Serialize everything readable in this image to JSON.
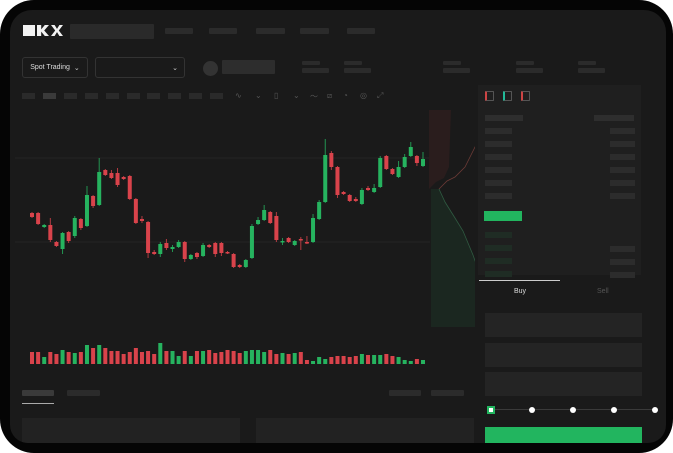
{
  "header": {
    "logo": "OKX"
  },
  "market": {
    "mode_label": "Spot Trading"
  },
  "trade": {
    "buy_label": "Buy",
    "sell_label": "Sell",
    "leverage_steps": 5,
    "selected_step": 0
  },
  "colors": {
    "up": "#26b35f",
    "down": "#d9434b",
    "buy_button": "#22b55f",
    "background": "#1a1a1a"
  },
  "toolbar_icons": [
    "line-chart-icon",
    "indicator-icon",
    "candle-type-icon",
    "wave-icon",
    "pen-icon",
    "camera-icon",
    "settings-icon",
    "fullscreen-icon"
  ],
  "chart_data": {
    "type": "candlestick",
    "ohlc": [
      [
        67,
        63,
        68,
        62
      ],
      [
        67,
        56,
        68,
        55
      ],
      [
        53,
        55,
        56,
        52
      ],
      [
        55,
        40,
        62,
        38
      ],
      [
        38,
        34,
        39,
        33
      ],
      [
        31,
        47,
        48,
        26
      ],
      [
        48,
        39,
        49,
        37
      ],
      [
        44,
        62,
        64,
        42
      ],
      [
        61,
        52,
        62,
        50
      ],
      [
        54,
        85,
        94,
        53
      ],
      [
        84,
        74,
        85,
        72
      ],
      [
        75,
        108,
        122,
        74
      ],
      [
        110,
        105,
        111,
        104
      ],
      [
        107,
        102,
        110,
        101
      ],
      [
        107,
        95,
        112,
        93
      ],
      [
        103,
        101,
        104,
        100
      ],
      [
        104,
        81,
        105,
        80
      ],
      [
        81,
        57,
        82,
        56
      ],
      [
        61,
        59,
        64,
        57
      ],
      [
        58,
        27,
        59,
        22
      ],
      [
        28,
        26,
        30,
        25
      ],
      [
        26,
        36,
        38,
        23
      ],
      [
        37,
        32,
        41,
        30
      ],
      [
        31,
        33,
        35,
        28
      ],
      [
        33,
        38,
        40,
        32
      ],
      [
        38,
        21,
        39,
        18
      ],
      [
        21,
        25,
        26,
        20
      ],
      [
        27,
        23,
        28,
        21
      ],
      [
        24,
        35,
        37,
        23
      ],
      [
        35,
        33,
        36,
        32
      ],
      [
        37,
        26,
        38,
        23
      ],
      [
        37,
        27,
        38,
        24
      ],
      [
        28,
        27,
        29,
        26
      ],
      [
        26,
        13,
        27,
        12
      ],
      [
        15,
        13,
        16,
        12
      ],
      [
        13,
        20,
        21,
        12
      ],
      [
        22,
        54,
        56,
        21
      ],
      [
        56,
        60,
        63,
        55
      ],
      [
        60,
        70,
        75,
        59
      ],
      [
        68,
        57,
        69,
        56
      ],
      [
        64,
        40,
        68,
        38
      ],
      [
        38,
        39,
        42,
        35
      ],
      [
        42,
        38,
        43,
        37
      ],
      [
        35,
        39,
        40,
        34
      ],
      [
        41,
        40,
        43,
        30
      ],
      [
        38,
        37,
        44,
        36
      ],
      [
        38,
        62,
        66,
        37
      ],
      [
        61,
        78,
        80,
        60
      ],
      [
        78,
        125,
        141,
        77
      ],
      [
        127,
        113,
        129,
        110
      ],
      [
        113,
        85,
        114,
        82
      ],
      [
        88,
        86,
        89,
        85
      ],
      [
        85,
        79,
        86,
        78
      ],
      [
        81,
        79,
        83,
        78
      ],
      [
        76,
        90,
        92,
        75
      ],
      [
        92,
        90,
        94,
        89
      ],
      [
        88,
        92,
        96,
        87
      ],
      [
        93,
        122,
        124,
        92
      ],
      [
        124,
        111,
        125,
        110
      ],
      [
        111,
        106,
        112,
        105
      ],
      [
        103,
        113,
        119,
        102
      ],
      [
        113,
        123,
        126,
        112
      ],
      [
        124,
        133,
        138,
        123
      ],
      [
        124,
        117,
        125,
        114
      ],
      [
        114,
        121,
        128,
        113
      ]
    ],
    "volume": [
      12,
      12,
      7,
      12,
      10,
      14,
      12,
      11,
      12,
      19,
      16,
      19,
      16,
      13,
      13,
      10,
      12,
      16,
      12,
      13,
      10,
      21,
      13,
      13,
      8,
      13,
      8,
      13,
      13,
      14,
      11,
      12,
      14,
      13,
      11,
      13,
      14,
      14,
      12,
      14,
      10,
      11,
      10,
      11,
      12,
      4,
      3,
      7,
      5,
      7,
      8,
      8,
      7,
      8,
      10,
      9,
      9,
      9,
      10,
      8,
      7,
      4,
      3,
      5,
      4
    ]
  }
}
